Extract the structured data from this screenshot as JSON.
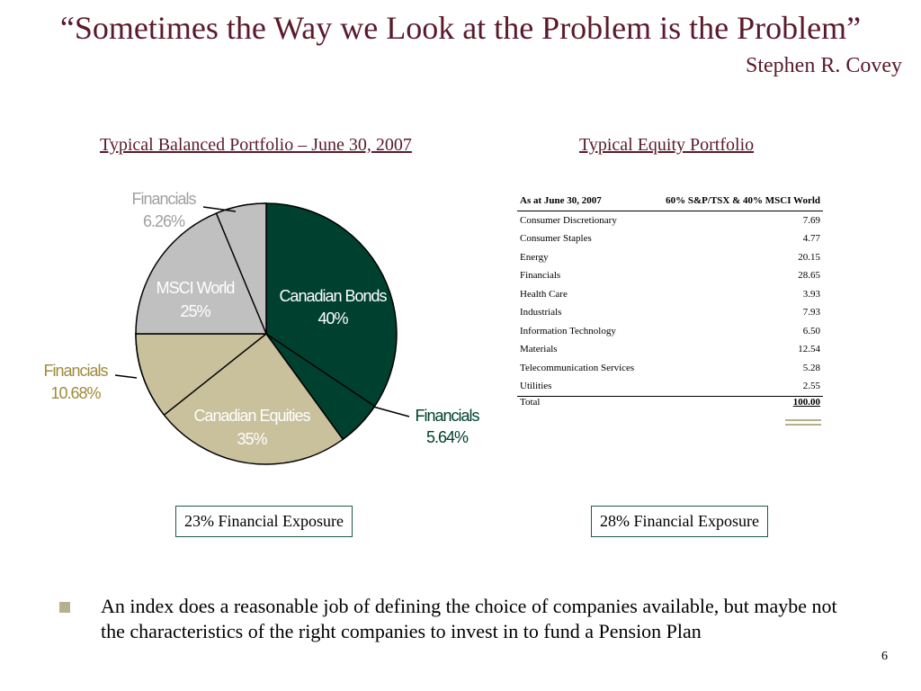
{
  "header": {
    "title": "“Sometimes the Way we Look at the Problem is the Problem”",
    "author": "Stephen R. Covey"
  },
  "chart_data": {
    "type": "pie",
    "title": "Typical Balanced Portfolio – June 30, 2007",
    "categories": [
      "Canadian Bonds",
      "Canadian Equities",
      "MSCI World"
    ],
    "values": [
      40,
      35,
      25
    ],
    "value_labels": [
      "40%",
      "35%",
      "25%"
    ],
    "colors": [
      "#00402f",
      "#c9c09c",
      "#c0c0c0"
    ],
    "sub_slices": {
      "name": "Financials",
      "values": [
        5.64,
        10.68,
        6.26
      ],
      "value_labels": [
        "5.64%",
        "10.68%",
        "6.26%"
      ],
      "colors": [
        "#00402f",
        "#c9c09c",
        "#c0c0c0"
      ]
    }
  },
  "equity_table": {
    "title": "Typical Equity Portfolio",
    "columns": [
      "As at June 30, 2007",
      "60% S&P/TSX & 40% MSCI World"
    ],
    "rows": [
      [
        "Consumer Discretionary",
        "7.69"
      ],
      [
        "Consumer Staples",
        "4.77"
      ],
      [
        "Energy",
        "20.15"
      ],
      [
        "Financials",
        "28.65"
      ],
      [
        "Health Care",
        "3.93"
      ],
      [
        "Industrials",
        "7.93"
      ],
      [
        "Information Technology",
        "6.50"
      ],
      [
        "Materials",
        "12.54"
      ],
      [
        "Telecommunication Services",
        "5.28"
      ],
      [
        "Utilities",
        "2.55"
      ]
    ],
    "total": [
      "Total",
      "100.00"
    ]
  },
  "exposures": [
    "23% Financial Exposure",
    "28% Financial Exposure"
  ],
  "bullet": "An index does a reasonable job of defining the choice of companies available, but maybe not the characteristics of the right companies to invest in to fund a Pension Plan",
  "page_number": "6"
}
